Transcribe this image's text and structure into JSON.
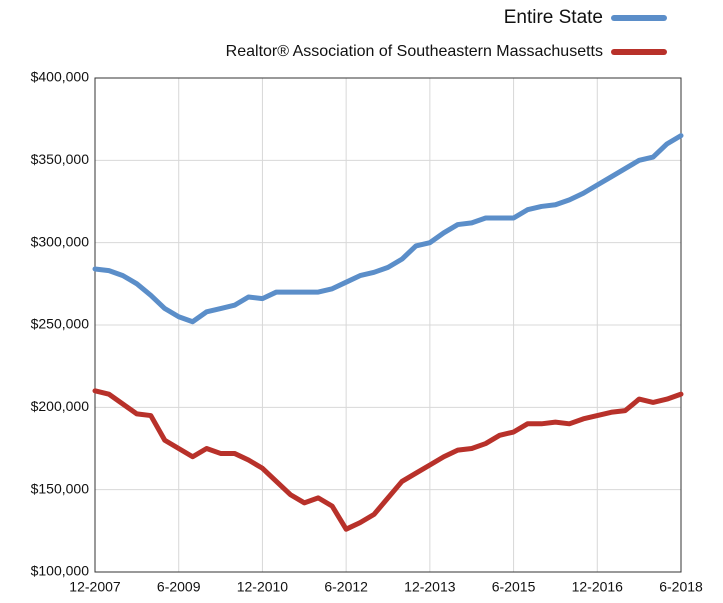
{
  "chart_data": {
    "type": "line",
    "categories": [
      "12-2007",
      null,
      null,
      null,
      null,
      null,
      "6-2009",
      null,
      null,
      null,
      null,
      null,
      "12-2010",
      null,
      null,
      null,
      null,
      null,
      "6-2012",
      null,
      null,
      null,
      null,
      null,
      "12-2013",
      null,
      null,
      null,
      null,
      null,
      "6-2015",
      null,
      null,
      null,
      null,
      null,
      "12-2016",
      null,
      null,
      null,
      null,
      null,
      "6-2018"
    ],
    "series": [
      {
        "name": "Entire State",
        "color": "#5b8ec9",
        "values": [
          284000,
          283000,
          280000,
          275000,
          268000,
          260000,
          255000,
          252000,
          258000,
          260000,
          262000,
          267000,
          266000,
          270000,
          270000,
          270000,
          270000,
          272000,
          276000,
          280000,
          282000,
          285000,
          290000,
          298000,
          300000,
          306000,
          311000,
          312000,
          315000,
          315000,
          315000,
          320000,
          322000,
          323000,
          326000,
          330000,
          335000,
          340000,
          345000,
          350000,
          352000,
          360000,
          365000
        ]
      },
      {
        "name": "Realtor® Association of Southeastern Massachusetts",
        "color": "#b8312a",
        "values": [
          210000,
          208000,
          202000,
          196000,
          195000,
          180000,
          175000,
          170000,
          175000,
          172000,
          172000,
          168000,
          163000,
          155000,
          147000,
          142000,
          145000,
          140000,
          126000,
          130000,
          135000,
          145000,
          155000,
          160000,
          165000,
          170000,
          174000,
          175000,
          178000,
          183000,
          185000,
          190000,
          190000,
          191000,
          190000,
          193000,
          195000,
          197000,
          198000,
          205000,
          203000,
          205000,
          208000
        ]
      }
    ],
    "ylim": [
      100000,
      400000
    ],
    "yticks": [
      {
        "value": 100000,
        "label": "$100,000"
      },
      {
        "value": 150000,
        "label": "$150,000"
      },
      {
        "value": 200000,
        "label": "$200,000"
      },
      {
        "value": 250000,
        "label": "$250,000"
      },
      {
        "value": 300000,
        "label": "$300,000"
      },
      {
        "value": 350000,
        "label": "$350,000"
      },
      {
        "value": 400000,
        "label": "$400,000"
      }
    ],
    "grid": true,
    "legend": "top-right"
  }
}
